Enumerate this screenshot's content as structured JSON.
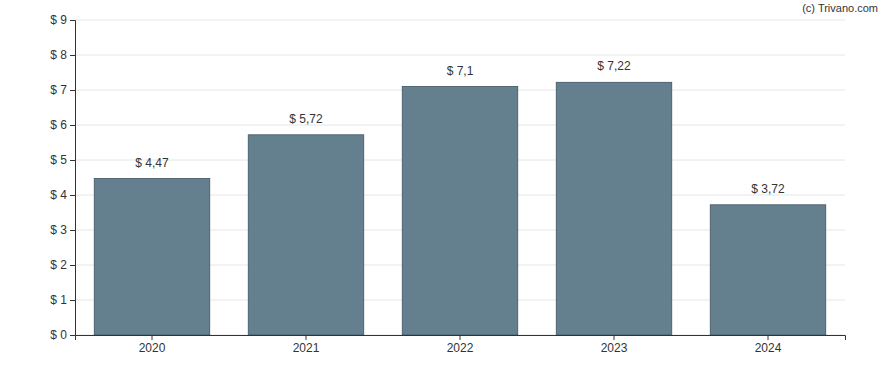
{
  "chart_data": {
    "type": "bar",
    "annotations": [
      "(c) Trivano.com"
    ],
    "categories": [
      "2020",
      "2021",
      "2022",
      "2023",
      "2024"
    ],
    "values": [
      4.47,
      5.72,
      7.1,
      7.22,
      3.72
    ],
    "value_labels": [
      "$ 4,47",
      "$ 5,72",
      "$ 7,1",
      "$ 7,22",
      "$ 3,72"
    ],
    "data_labels": true,
    "color": "#64808f",
    "ylim": [
      0,
      9
    ],
    "yticks": [
      {
        "value": 0,
        "label": "$ 0"
      },
      {
        "value": 1,
        "label": "$ 1"
      },
      {
        "value": 2,
        "label": "$ 2"
      },
      {
        "value": 3,
        "label": "$ 3"
      },
      {
        "value": 4,
        "label": "$ 4"
      },
      {
        "value": 5,
        "label": "$ 5"
      },
      {
        "value": 6,
        "label": "$ 6"
      },
      {
        "value": 7,
        "label": "$ 7"
      },
      {
        "value": 8,
        "label": "$ 8"
      },
      {
        "value": 9,
        "label": "$ 9"
      }
    ],
    "grid": true
  }
}
